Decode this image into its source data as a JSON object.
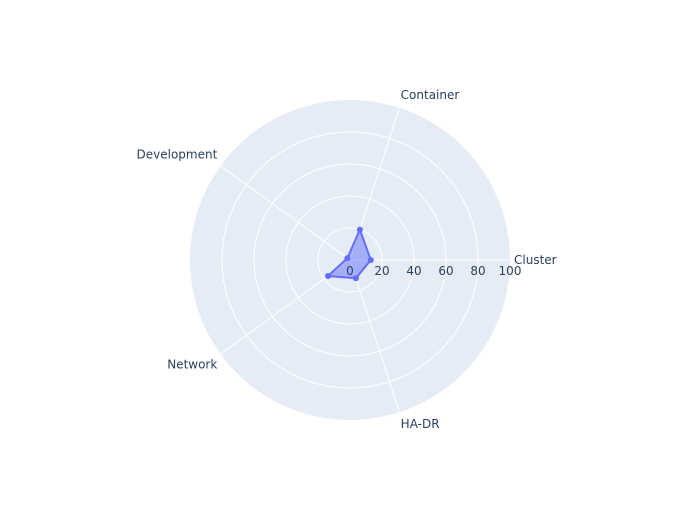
{
  "chart_data": {
    "type": "radar",
    "title": "",
    "categories": [
      "Cluster",
      "Container",
      "Development",
      "Network",
      "HA-DR"
    ],
    "series": [
      {
        "values": [
          13,
          20,
          2,
          17,
          12
        ]
      }
    ],
    "radial_range": [
      0,
      100
    ],
    "radial_ticks": [
      "0",
      "20",
      "40",
      "60",
      "80",
      "100"
    ],
    "angular_direction": "counterclockwise",
    "start_angle_deg": 0,
    "grid": true,
    "showlegend": false,
    "colors": {
      "polar_background": "#e5ecf6",
      "gridline": "#ffffff",
      "series_line": "#636efa",
      "series_fill": "rgba(99,110,250,0.5)",
      "text": "#2a3f5f"
    }
  }
}
